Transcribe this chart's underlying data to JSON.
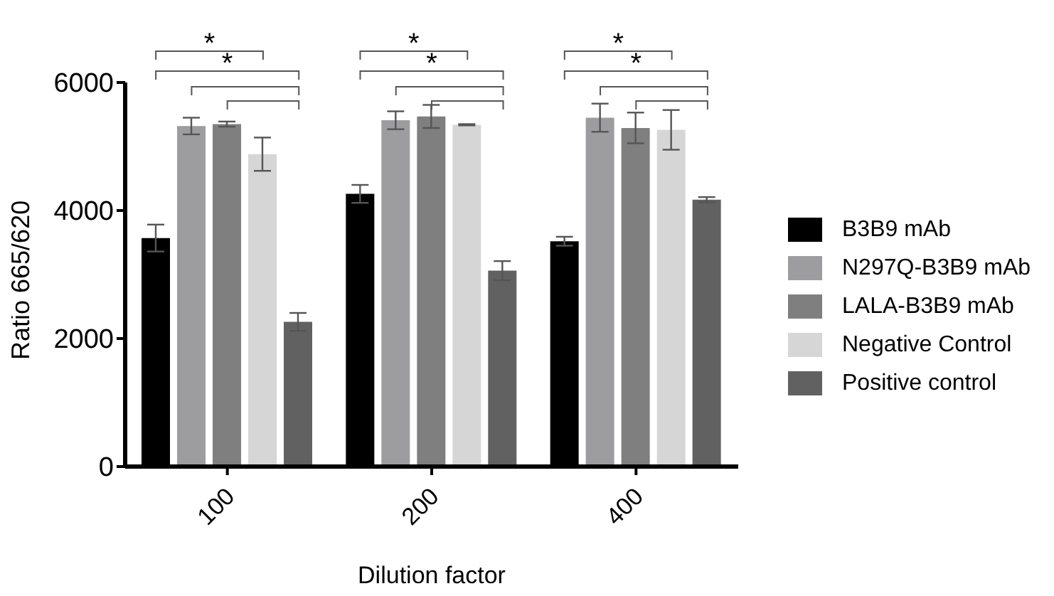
{
  "chart_data": {
    "type": "bar",
    "xlabel": "Dilution factor",
    "ylabel": "Ratio 665/620",
    "categories": [
      "100",
      "200",
      "400"
    ],
    "ylim": [
      0,
      6000
    ],
    "yticks": [
      0,
      2000,
      4000,
      6000
    ],
    "legend": "right",
    "annotations": [
      "*",
      "*",
      "*",
      "*",
      "*",
      "*"
    ],
    "series": [
      {
        "name": "B3B9 mAb",
        "color": "#000000",
        "values": [
          3570,
          4260,
          3520
        ],
        "errors": [
          210,
          140,
          70
        ]
      },
      {
        "name": "N297Q-B3B9 mAb",
        "color": "#9d9d9f",
        "values": [
          5320,
          5410,
          5450
        ],
        "errors": [
          130,
          140,
          220
        ]
      },
      {
        "name": "LALA-B3B9 mAb",
        "color": "#7f7f7f",
        "values": [
          5350,
          5470,
          5290
        ],
        "errors": [
          40,
          180,
          240
        ]
      },
      {
        "name": "Negative Control",
        "color": "#d6d6d6",
        "values": [
          4880,
          5340,
          5260
        ],
        "errors": [
          260,
          10,
          310
        ]
      },
      {
        "name": "Positive control",
        "color": "#616161",
        "values": [
          2260,
          3060,
          4170
        ],
        "errors": [
          140,
          150,
          40
        ]
      }
    ]
  }
}
